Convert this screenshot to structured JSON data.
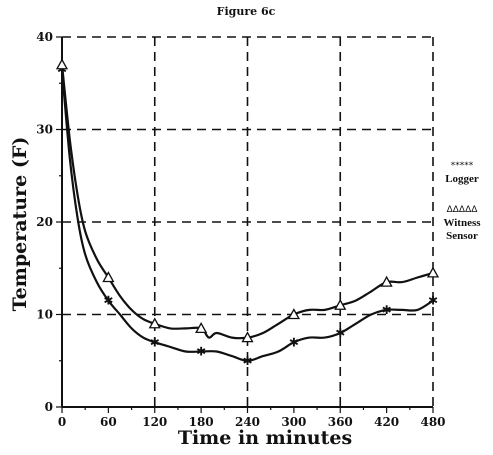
{
  "chart_data": {
    "type": "line",
    "title": "Figure 6c",
    "xlabel": "Time in minutes",
    "ylabel": "Temperature (F)",
    "xlim": [
      0,
      480
    ],
    "ylim": [
      0,
      40
    ],
    "x_ticks": [
      "0",
      "60",
      "120",
      "180",
      "240",
      "300",
      "360",
      "420",
      "480"
    ],
    "y_ticks": [
      "0",
      "10",
      "20",
      "30",
      "40"
    ],
    "grid": true,
    "legend_position": "right",
    "series": [
      {
        "name": "Logger",
        "legend_symbol": "*****",
        "marker": "star",
        "x": [
          0,
          10,
          20,
          30,
          45,
          60,
          75,
          90,
          105,
          120,
          140,
          160,
          180,
          200,
          220,
          240,
          260,
          280,
          300,
          320,
          340,
          360,
          380,
          400,
          420,
          440,
          460,
          480
        ],
        "values": [
          36.5,
          27,
          20.5,
          16.5,
          13.5,
          11.5,
          10,
          8.5,
          7.5,
          7,
          6.5,
          6,
          6,
          6,
          5.5,
          5,
          5.5,
          6,
          7,
          7.5,
          7.5,
          8,
          9,
          10,
          10.5,
          10.5,
          10.5,
          11.5
        ]
      },
      {
        "name": "Witness Sensor",
        "legend_symbol": "ΔΔΔΔΔ",
        "marker": "triangle",
        "x": [
          0,
          10,
          20,
          30,
          45,
          60,
          75,
          90,
          105,
          120,
          140,
          160,
          180,
          190,
          200,
          220,
          240,
          260,
          280,
          300,
          320,
          340,
          360,
          380,
          400,
          420,
          440,
          460,
          480
        ],
        "values": [
          37,
          29,
          23,
          19,
          16,
          14,
          12,
          10.5,
          9.5,
          9,
          8.5,
          8.5,
          8.5,
          7.5,
          8,
          7.5,
          7.5,
          8,
          9,
          10,
          10.5,
          10.5,
          11,
          11.5,
          12.5,
          13.5,
          13.5,
          14,
          14.5
        ]
      }
    ]
  }
}
